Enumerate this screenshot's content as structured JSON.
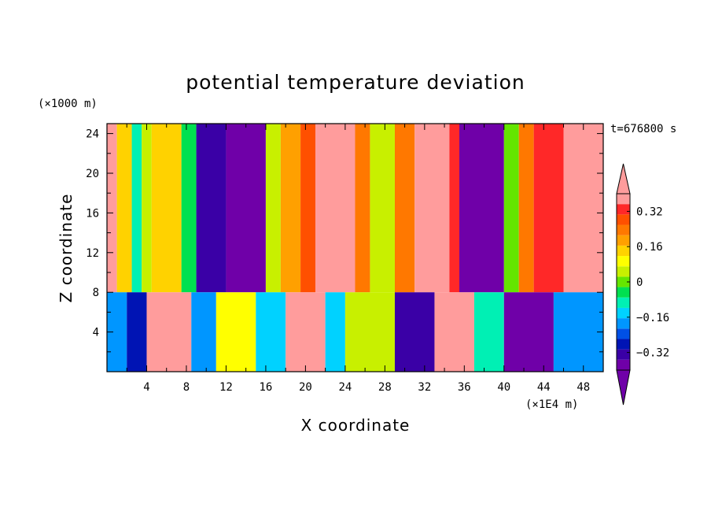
{
  "chart_data": {
    "type": "heatmap",
    "title": "potential temperature deviation",
    "xlabel": "X coordinate",
    "ylabel": "Z coordinate",
    "x_unit": "(×1E4 m)",
    "y_unit": "(×1000 m)",
    "time_label": "t=676800 s",
    "xlim": [
      0,
      50
    ],
    "ylim": [
      0,
      25
    ],
    "x_ticks": [
      "4",
      "8",
      "12",
      "16",
      "20",
      "24",
      "28",
      "32",
      "36",
      "40",
      "44",
      "48"
    ],
    "y_ticks": [
      "4",
      "8",
      "12",
      "16",
      "20",
      "24"
    ],
    "colorbar": {
      "levels": [
        -0.4,
        -0.36,
        -0.32,
        -0.28,
        -0.24,
        -0.2,
        -0.16,
        -0.12,
        -0.08,
        -0.04,
        0,
        0.04,
        0.08,
        0.12,
        0.16,
        0.2,
        0.24,
        0.28,
        0.32,
        0.36,
        0.4
      ],
      "colors": [
        "#6f00a8",
        "#3a00a6",
        "#0014b4",
        "#0050e6",
        "#0096ff",
        "#00d2ff",
        "#00f0b4",
        "#00e050",
        "#64e600",
        "#c8f000",
        "#ffff00",
        "#ffd200",
        "#ffa000",
        "#ff7800",
        "#ff5000",
        "#ff2828",
        "#ff9c9c"
      ],
      "tick_labels": [
        "0.32",
        "0.16",
        "0",
        "−0.16",
        "−0.32"
      ],
      "tick_values": [
        0.32,
        0.16,
        0,
        -0.16,
        -0.32
      ],
      "extend": "both"
    },
    "columns_upper_layer": [
      {
        "x_range": [
          0,
          1
        ],
        "value": 0.4
      },
      {
        "x_range": [
          1,
          2.5
        ],
        "value": 0.12
      },
      {
        "x_range": [
          2.5,
          3.5
        ],
        "value": -0.1
      },
      {
        "x_range": [
          3.5,
          4.5
        ],
        "value": 0.05
      },
      {
        "x_range": [
          4.5,
          7.5
        ],
        "value": 0.16
      },
      {
        "x_range": [
          7.5,
          9
        ],
        "value": -0.05
      },
      {
        "x_range": [
          9,
          12
        ],
        "value": -0.34
      },
      {
        "x_range": [
          12,
          16
        ],
        "value": -0.4
      },
      {
        "x_range": [
          16,
          17.5
        ],
        "value": 0.05
      },
      {
        "x_range": [
          17.5,
          19.5
        ],
        "value": 0.2
      },
      {
        "x_range": [
          19.5,
          21
        ],
        "value": 0.3
      },
      {
        "x_range": [
          21,
          25
        ],
        "value": 0.4
      },
      {
        "x_range": [
          25,
          26.5
        ],
        "value": 0.24
      },
      {
        "x_range": [
          26.5,
          29
        ],
        "value": 0.05
      },
      {
        "x_range": [
          29,
          31
        ],
        "value": 0.24
      },
      {
        "x_range": [
          31,
          34.5
        ],
        "value": 0.4
      },
      {
        "x_range": [
          34.5,
          35.5
        ],
        "value": 0.32
      },
      {
        "x_range": [
          35.5,
          40
        ],
        "value": -0.4
      },
      {
        "x_range": [
          40,
          41.5
        ],
        "value": 0.0
      },
      {
        "x_range": [
          41.5,
          43
        ],
        "value": 0.24
      },
      {
        "x_range": [
          43,
          46
        ],
        "value": 0.32
      },
      {
        "x_range": [
          46,
          50
        ],
        "value": 0.4
      }
    ],
    "columns_lower_layer": [
      {
        "x_range": [
          0,
          2
        ],
        "value": -0.2
      },
      {
        "x_range": [
          2,
          4
        ],
        "value": -0.3
      },
      {
        "x_range": [
          4,
          8.5
        ],
        "value": 0.4
      },
      {
        "x_range": [
          8.5,
          11
        ],
        "value": -0.2
      },
      {
        "x_range": [
          11,
          15
        ],
        "value": 0.1
      },
      {
        "x_range": [
          15,
          18
        ],
        "value": -0.12
      },
      {
        "x_range": [
          18,
          22
        ],
        "value": 0.4
      },
      {
        "x_range": [
          22,
          24
        ],
        "value": -0.16
      },
      {
        "x_range": [
          24,
          29
        ],
        "value": 0.04
      },
      {
        "x_range": [
          29,
          33
        ],
        "value": -0.32
      },
      {
        "x_range": [
          33,
          37
        ],
        "value": 0.4
      },
      {
        "x_range": [
          37,
          40
        ],
        "value": -0.08
      },
      {
        "x_range": [
          40,
          45
        ],
        "value": -0.36
      },
      {
        "x_range": [
          45,
          50
        ],
        "value": -0.2
      }
    ],
    "layer_interface_z": 8,
    "grid": false
  }
}
